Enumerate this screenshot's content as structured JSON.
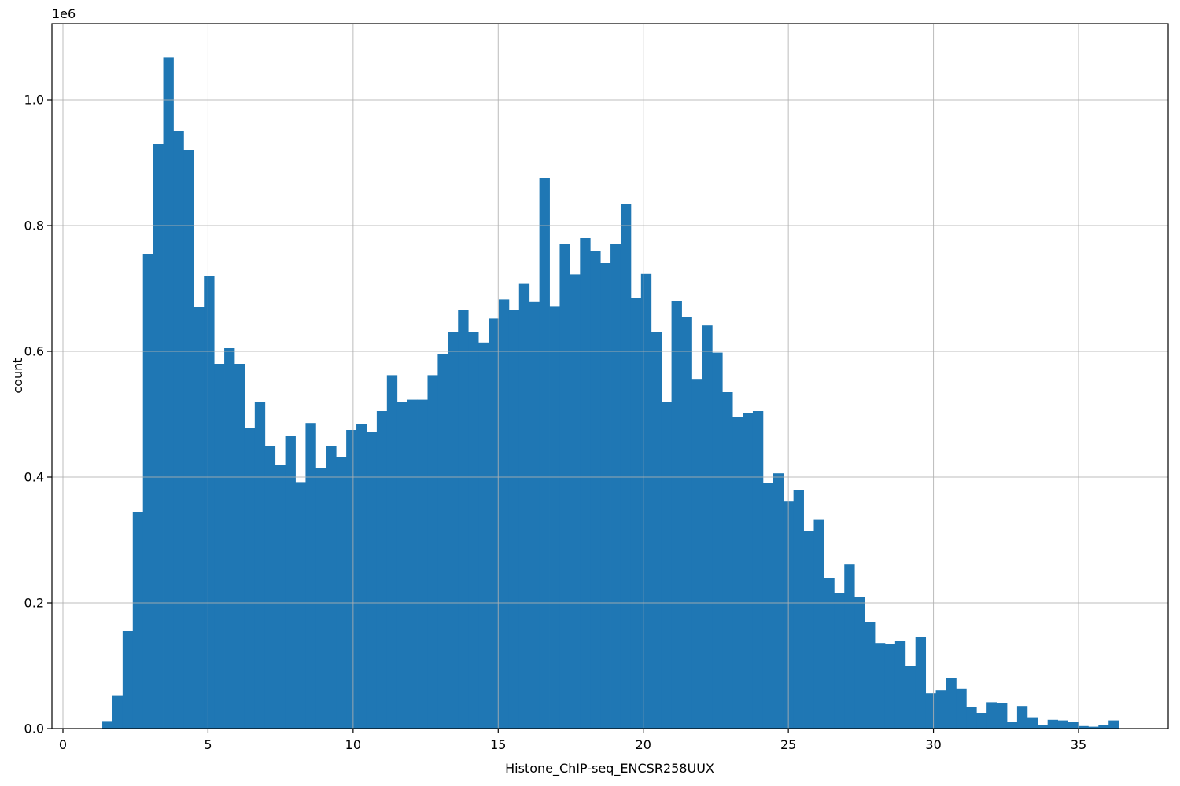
{
  "chart_data": {
    "type": "bar",
    "subtype": "histogram",
    "title": "",
    "xlabel": "Histone_ChIP-seq_ENCSR258UUX",
    "ylabel": "count",
    "y_offset_label": "1e6",
    "grid": true,
    "legend": false,
    "bar_color": "#1f77b4",
    "grid_color": "#b0b0b0",
    "xlim": [
      -0.38,
      38.09
    ],
    "ylim": [
      0,
      1121000
    ],
    "x_ticks": [
      0,
      5,
      10,
      15,
      20,
      25,
      30,
      35
    ],
    "x_tick_labels": [
      "0",
      "5",
      "10",
      "15",
      "20",
      "25",
      "30",
      "35"
    ],
    "y_ticks": [
      0,
      200000,
      400000,
      600000,
      800000,
      1000000
    ],
    "y_tick_labels": [
      "0.0",
      "0.2",
      "0.4",
      "0.6",
      "0.8",
      "1.0"
    ],
    "bin_start": 1.356,
    "bin_width": 0.3503,
    "counts": [
      12000,
      53000,
      155000,
      345000,
      755000,
      930000,
      1067000,
      950000,
      920000,
      670000,
      720000,
      580000,
      605000,
      580000,
      478000,
      520000,
      450000,
      419000,
      465000,
      392000,
      486000,
      415000,
      450000,
      432000,
      475000,
      485000,
      472000,
      505000,
      562000,
      520000,
      523000,
      523000,
      562000,
      595000,
      630000,
      665000,
      630000,
      614000,
      652000,
      682000,
      665000,
      708000,
      679000,
      875000,
      672000,
      770000,
      722000,
      780000,
      760000,
      740000,
      771000,
      835000,
      685000,
      724000,
      630000,
      519000,
      680000,
      655000,
      556000,
      641000,
      598000,
      535000,
      495000,
      502000,
      505000,
      390000,
      406000,
      361000,
      380000,
      314000,
      333000,
      240000,
      215000,
      261000,
      210000,
      170000,
      136000,
      135000,
      140000,
      100000,
      146000,
      56000,
      61000,
      81000,
      64000,
      35000,
      25000,
      42000,
      40000,
      10000,
      36000,
      18000,
      5000,
      14000,
      13000,
      11000,
      4000,
      3000,
      5000,
      13000
    ]
  }
}
